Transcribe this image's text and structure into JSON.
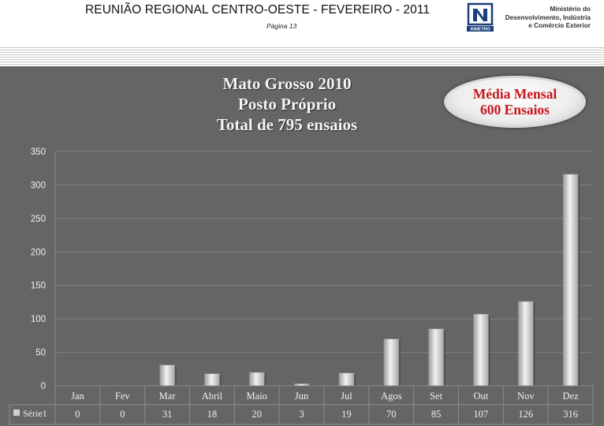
{
  "header": {
    "title": "REUNIÃO REGIONAL CENTRO-OESTE  - FEVEREIRO - 2011",
    "page": "Página  13",
    "logo_text": "INMETRO",
    "ministry_lines": [
      "Ministério do",
      "Desenvolvimento, Indústria",
      "e Comércio Exterior"
    ]
  },
  "badge": {
    "line1": "Média Mensal",
    "line2": "600 Ensaios"
  },
  "chart_data": {
    "type": "bar",
    "title_lines": [
      "Mato Grosso 2010",
      "Posto Próprio",
      "Total de 795 ensaios"
    ],
    "categories": [
      "Jan",
      "Fev",
      "Mar",
      "Abril",
      "Maio",
      "Jun",
      "Jul",
      "Agos",
      "Set",
      "Out",
      "Nov",
      "Dez"
    ],
    "series": [
      {
        "name": "Série1",
        "values": [
          0,
          0,
          31,
          18,
          20,
          3,
          19,
          70,
          85,
          107,
          126,
          316
        ]
      }
    ],
    "ylim": [
      0,
      350
    ],
    "yticks": [
      0,
      50,
      100,
      150,
      200,
      250,
      300,
      350
    ],
    "grid": true,
    "legend": "data-table",
    "colors": {
      "bar": "#d6d6d6",
      "grid": "#808080",
      "panel": "#656565",
      "text": "#f0f0f0"
    }
  }
}
